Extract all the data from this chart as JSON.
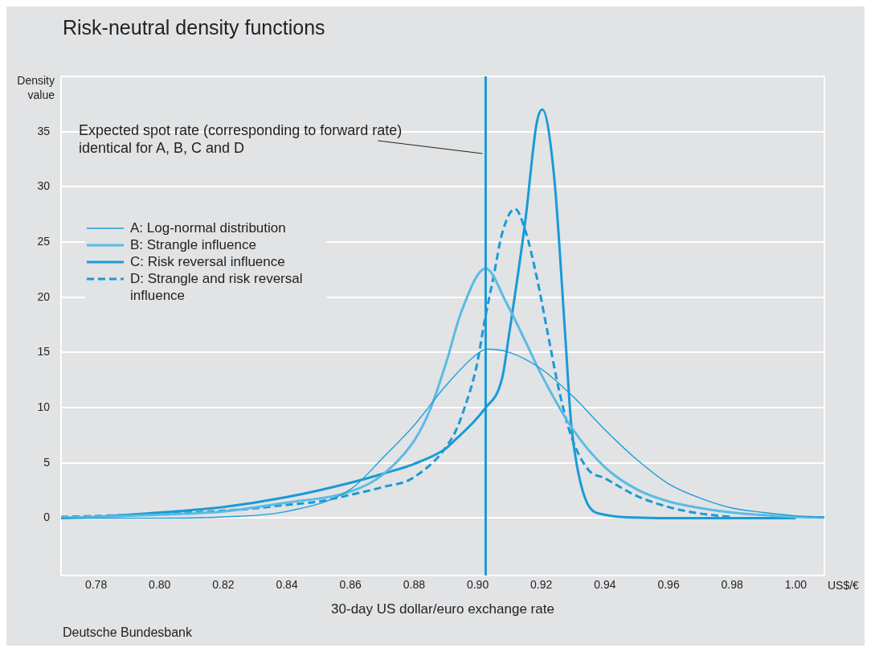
{
  "chart_data": {
    "type": "line",
    "title": "Risk-neutral density functions",
    "ylabel": "Density value",
    "xlabel": "30-day US dollar/euro exchange rate",
    "annotations": [
      "US$/€",
      "Deutsche Bundesbank"
    ],
    "xlim": [
      0.769,
      1.009
    ],
    "ylim": [
      -5.2,
      40
    ],
    "xticks": [
      {
        "value": 0.78,
        "label": "0.78"
      },
      {
        "value": 0.8,
        "label": "0.80"
      },
      {
        "value": 0.82,
        "label": "0.82"
      },
      {
        "value": 0.84,
        "label": "0.84"
      },
      {
        "value": 0.86,
        "label": "0.86"
      },
      {
        "value": 0.88,
        "label": "0.88"
      },
      {
        "value": 0.9,
        "label": "0.90"
      },
      {
        "value": 0.92,
        "label": "0.92"
      },
      {
        "value": 0.94,
        "label": "0.94"
      },
      {
        "value": 0.96,
        "label": "0.96"
      },
      {
        "value": 0.98,
        "label": "0.98"
      },
      {
        "value": 1.0,
        "label": "1.00"
      }
    ],
    "yticks": [
      0,
      5,
      10,
      15,
      20,
      25,
      30,
      35
    ],
    "grid": "y",
    "legend": "top left",
    "marker": "none",
    "ref_lines": [
      {
        "axis": "x",
        "value": 0.9025,
        "label": "Expected spot rate (corresponding to forward rate)\nidentical for A, B, C and D",
        "color": "#1a9ad6"
      }
    ],
    "series": [
      {
        "name": "A: Log-normal distribution",
        "color": "#1aa0d8",
        "line_style": "solid",
        "x": [
          0.769,
          0.8,
          0.82,
          0.84,
          0.86,
          0.87,
          0.88,
          0.89,
          0.9,
          0.903,
          0.91,
          0.92,
          0.93,
          0.94,
          0.95,
          0.96,
          0.97,
          0.98,
          0.99,
          1.0,
          1.009
        ],
        "values": [
          0,
          0,
          0.1,
          0.6,
          2.6,
          5.4,
          8.4,
          12,
          14.9,
          15.3,
          15,
          13.5,
          11,
          8,
          5.3,
          3.1,
          1.8,
          0.9,
          0.5,
          0.2,
          0.1
        ]
      },
      {
        "name": "B: Strangle influence",
        "color": "#5bbbe4",
        "line_style": "solid",
        "x": [
          0.769,
          0.78,
          0.8,
          0.82,
          0.84,
          0.86,
          0.87,
          0.88,
          0.885,
          0.89,
          0.895,
          0.9025,
          0.909,
          0.915,
          0.92,
          0.93,
          0.94,
          0.95,
          0.96,
          0.97,
          0.98,
          1.0,
          1.009
        ],
        "values": [
          0.05,
          0.1,
          0.3,
          0.6,
          1.4,
          2.4,
          3.9,
          7,
          9.8,
          14,
          18.8,
          22.6,
          19.5,
          16,
          13,
          8,
          4.6,
          2.6,
          1.5,
          0.9,
          0.5,
          0.1,
          0.05
        ]
      },
      {
        "name": "C: Risk reversal influence",
        "color": "#1a9ad6",
        "line_style": "solid",
        "x": [
          0.769,
          0.78,
          0.8,
          0.82,
          0.84,
          0.86,
          0.87,
          0.88,
          0.89,
          0.8915,
          0.9022,
          0.9077,
          0.91,
          0.915,
          0.9185,
          0.9203,
          0.924,
          0.9275,
          0.9293,
          0.9311,
          0.9347,
          0.94,
          0.95,
          0.96,
          0.98,
          1.0
        ],
        "values": [
          0,
          0.1,
          0.5,
          1,
          1.9,
          3.2,
          4,
          4.9,
          6.3,
          6.7,
          9.9,
          12.7,
          16.9,
          27,
          35.7,
          37,
          31,
          16.6,
          8.8,
          4.9,
          1.2,
          0.3,
          0.05,
          0,
          0,
          0
        ]
      },
      {
        "name": "D: Strangle and risk reversal influence",
        "color": "#1a9ad6",
        "line_style": "dashed",
        "x": [
          0.769,
          0.793,
          0.8267,
          0.84,
          0.85,
          0.86,
          0.87,
          0.88,
          0.8924,
          0.896,
          0.8996,
          0.9022,
          0.905,
          0.9077,
          0.9117,
          0.915,
          0.9185,
          0.9221,
          0.9257,
          0.9293,
          0.9347,
          0.94,
          0.95,
          0.96,
          0.97,
          0.98
        ],
        "values": [
          0.1,
          0.3,
          0.8,
          1.2,
          1.5,
          2.1,
          2.8,
          3.7,
          7.5,
          10.1,
          13.7,
          17.9,
          21.9,
          25.8,
          28,
          26,
          21.9,
          16.6,
          11.4,
          7.5,
          4.4,
          3.6,
          2,
          1,
          0.4,
          0.1
        ]
      }
    ]
  }
}
